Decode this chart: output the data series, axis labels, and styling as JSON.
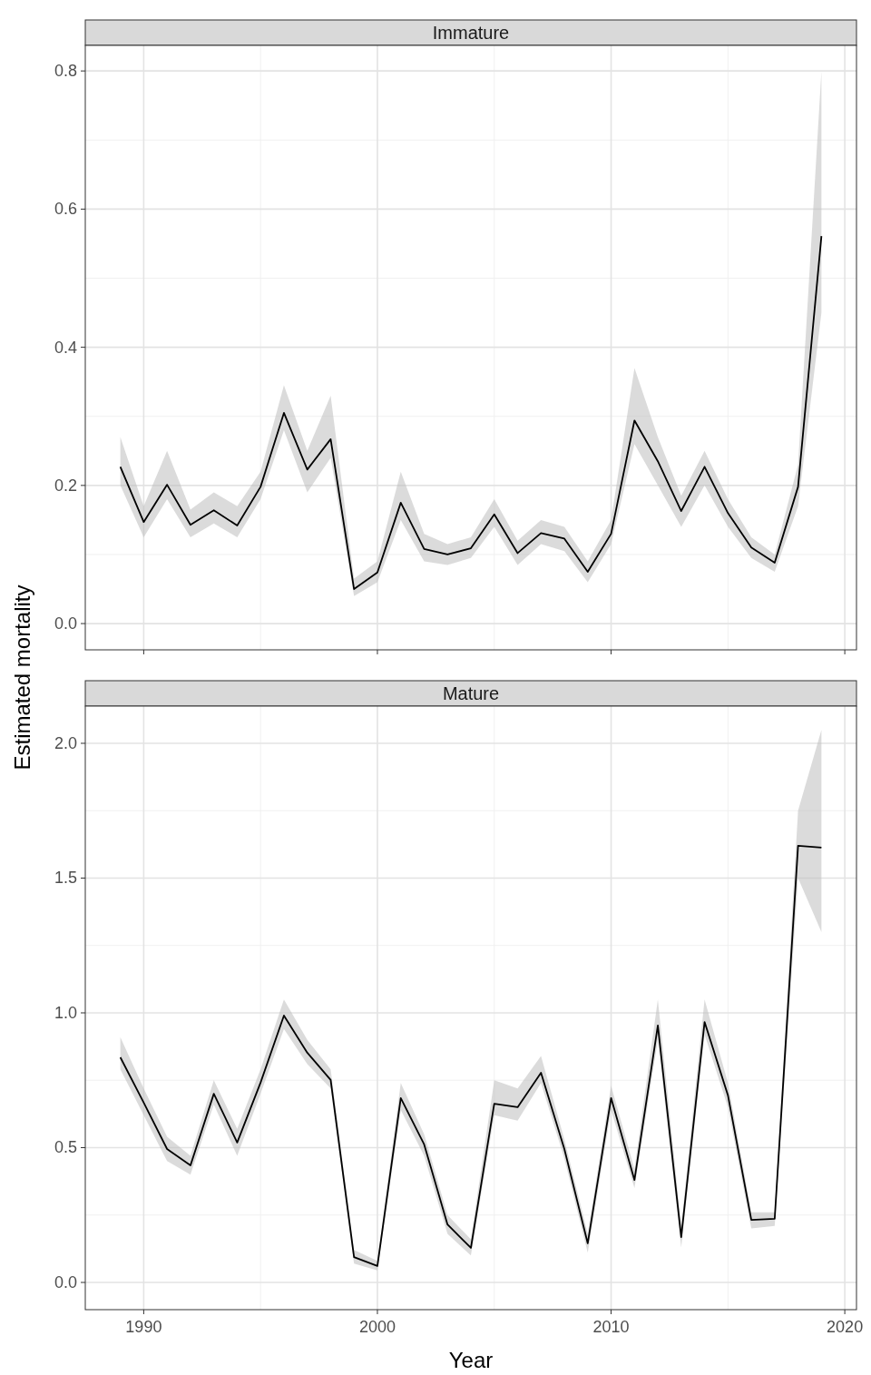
{
  "chart_data": [
    {
      "type": "line",
      "title": "Immature",
      "ylabel": "Estimated mortality",
      "x": [
        1989,
        1990,
        1991,
        1992,
        1993,
        1994,
        1995,
        1996,
        1997,
        1998,
        1999,
        2000,
        2001,
        2002,
        2003,
        2004,
        2005,
        2006,
        2007,
        2008,
        2009,
        2010,
        2011,
        2012,
        2013,
        2014,
        2015,
        2016,
        2017,
        2018,
        2019
      ],
      "series": [
        {
          "color": "#000000",
          "values": [
            0.227,
            0.147,
            0.201,
            0.143,
            0.164,
            0.142,
            0.198,
            0.305,
            0.223,
            0.267,
            0.05,
            0.074,
            0.175,
            0.108,
            0.1,
            0.109,
            0.158,
            0.102,
            0.131,
            0.123,
            0.075,
            0.13,
            0.294,
            0.235,
            0.163,
            0.227,
            0.16,
            0.11,
            0.088,
            0.198,
            0.561
          ],
          "lower": [
            0.2,
            0.125,
            0.18,
            0.125,
            0.145,
            0.125,
            0.18,
            0.28,
            0.19,
            0.24,
            0.04,
            0.06,
            0.15,
            0.09,
            0.085,
            0.095,
            0.14,
            0.085,
            0.115,
            0.105,
            0.06,
            0.115,
            0.26,
            0.2,
            0.14,
            0.2,
            0.14,
            0.095,
            0.075,
            0.17,
            0.45
          ],
          "upper": [
            0.27,
            0.17,
            0.25,
            0.165,
            0.19,
            0.17,
            0.22,
            0.345,
            0.25,
            0.33,
            0.065,
            0.09,
            0.22,
            0.13,
            0.115,
            0.125,
            0.18,
            0.12,
            0.15,
            0.14,
            0.09,
            0.15,
            0.37,
            0.27,
            0.185,
            0.25,
            0.18,
            0.125,
            0.1,
            0.23,
            0.8
          ]
        }
      ],
      "xlim": [
        1987.5,
        2020.5
      ],
      "xticks": [
        1990,
        2000,
        2010,
        2020
      ],
      "ylim": [
        -0.038,
        0.837
      ],
      "yticks": [
        {
          "value": 0,
          "label": "0.0"
        },
        {
          "value": 0.2,
          "label": "0.2"
        },
        {
          "value": 0.4,
          "label": "0.4"
        },
        {
          "value": 0.6,
          "label": "0.6"
        },
        {
          "value": 0.8,
          "label": "0.8"
        }
      ],
      "grid": true,
      "tick_labels": "y",
      "line_style": "solid"
    },
    {
      "type": "line",
      "title": "Mature",
      "xlabel": "Year",
      "x": [
        1989,
        1990,
        1991,
        1992,
        1993,
        1994,
        1995,
        1996,
        1997,
        1998,
        1999,
        2000,
        2001,
        2002,
        2003,
        2004,
        2005,
        2006,
        2007,
        2008,
        2009,
        2010,
        2011,
        2012,
        2013,
        2014,
        2015,
        2016,
        2017,
        2018,
        2019
      ],
      "series": [
        {
          "color": "#000000",
          "values": [
            0.835,
            0.667,
            0.495,
            0.434,
            0.7,
            0.519,
            0.741,
            0.99,
            0.852,
            0.751,
            0.094,
            0.061,
            0.684,
            0.512,
            0.215,
            0.128,
            0.663,
            0.65,
            0.778,
            0.495,
            0.145,
            0.684,
            0.38,
            0.953,
            0.168,
            0.966,
            0.694,
            0.232,
            0.236,
            1.62,
            1.613
          ],
          "lower": [
            0.79,
            0.62,
            0.45,
            0.4,
            0.66,
            0.47,
            0.7,
            0.94,
            0.81,
            0.72,
            0.07,
            0.045,
            0.64,
            0.47,
            0.18,
            0.1,
            0.62,
            0.6,
            0.74,
            0.46,
            0.11,
            0.64,
            0.35,
            0.9,
            0.13,
            0.92,
            0.65,
            0.2,
            0.21,
            1.5,
            1.3
          ],
          "upper": [
            0.91,
            0.72,
            0.54,
            0.47,
            0.75,
            0.57,
            0.79,
            1.05,
            0.9,
            0.79,
            0.12,
            0.08,
            0.74,
            0.55,
            0.25,
            0.16,
            0.75,
            0.72,
            0.84,
            0.53,
            0.18,
            0.73,
            0.42,
            1.05,
            0.21,
            1.05,
            0.74,
            0.26,
            0.26,
            1.75,
            2.05
          ]
        }
      ],
      "xlim": [
        1987.5,
        2020.5
      ],
      "xticks": [
        1990,
        2000,
        2010,
        2020
      ],
      "ylim": [
        -0.101,
        2.138
      ],
      "yticks": [
        {
          "value": 0,
          "label": "0.0"
        },
        {
          "value": 0.5,
          "label": "0.5"
        },
        {
          "value": 1,
          "label": "1.0"
        },
        {
          "value": 1.5,
          "label": "1.5"
        },
        {
          "value": 2,
          "label": "2.0"
        }
      ],
      "grid": true,
      "line_style": "solid"
    }
  ]
}
